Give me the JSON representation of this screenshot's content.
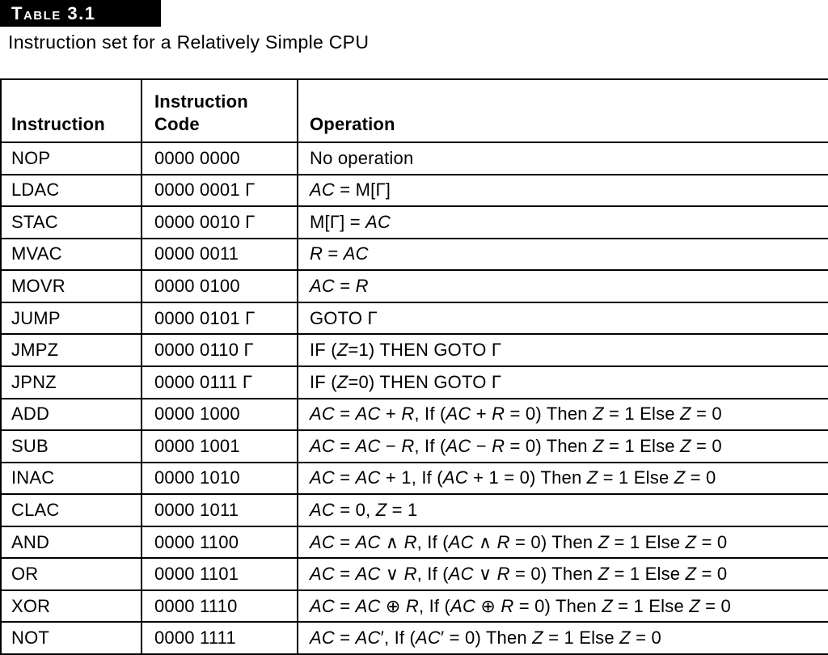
{
  "header": {
    "table_label": "Table 3.1",
    "caption": "Instruction set for a Relatively Simple CPU"
  },
  "colors": {
    "label_background": "#000000",
    "label_text": "#ffffff",
    "border": "#000000",
    "body_text": "#000000",
    "page_background": "#ffffff"
  },
  "table": {
    "columns": [
      "Instruction",
      "Instruction Code",
      "Operation"
    ],
    "rows": [
      {
        "instruction": "NOP",
        "code": "0000 0000",
        "operation": "No operation"
      },
      {
        "instruction": "LDAC",
        "code": "0000 0001 Γ",
        "operation": "*AC* = M[Γ]"
      },
      {
        "instruction": "STAC",
        "code": "0000 0010 Γ",
        "operation": "M[Γ] = *AC*"
      },
      {
        "instruction": "MVAC",
        "code": "0000 0011",
        "operation": "*R* = *AC*"
      },
      {
        "instruction": "MOVR",
        "code": "0000 0100",
        "operation": "*AC* = *R*"
      },
      {
        "instruction": "JUMP",
        "code": "0000 0101 Γ",
        "operation": "GOTO Γ"
      },
      {
        "instruction": "JMPZ",
        "code": "0000 0110 Γ",
        "operation": "IF (*Z*=1) THEN GOTO Γ"
      },
      {
        "instruction": "JPNZ",
        "code": "0000 0111 Γ",
        "operation": "IF (*Z*=0) THEN GOTO Γ"
      },
      {
        "instruction": "ADD",
        "code": "0000 1000",
        "operation": "*AC* = *AC* + *R*, If (*AC* + *R* = 0) Then *Z* = 1 Else *Z* = 0"
      },
      {
        "instruction": "SUB",
        "code": "0000 1001",
        "operation": "*AC* = *AC* − *R*, If (*AC* − *R* = 0) Then *Z* = 1 Else *Z* = 0"
      },
      {
        "instruction": "INAC",
        "code": "0000 1010",
        "operation": "*AC* = *AC* + 1, If (*AC* + 1 = 0) Then *Z* = 1 Else *Z* = 0"
      },
      {
        "instruction": "CLAC",
        "code": "0000 1011",
        "operation": "*AC* = 0, *Z* = 1"
      },
      {
        "instruction": "AND",
        "code": "0000 1100",
        "operation": "*AC* = *AC* ∧ *R*, If (*AC* ∧ *R* = 0) Then *Z* = 1 Else *Z* = 0"
      },
      {
        "instruction": "OR",
        "code": "0000 1101",
        "operation": "*AC* = *AC* ∨ *R*, If (*AC* ∨ *R* = 0) Then *Z* = 1 Else *Z* = 0"
      },
      {
        "instruction": "XOR",
        "code": "0000 1110",
        "operation": "*AC* = *AC* ⊕ *R*, If (*AC* ⊕ *R* = 0) Then *Z* = 1 Else *Z* = 0"
      },
      {
        "instruction": "NOT",
        "code": "0000 1111",
        "operation": "*AC* = *AC*′, If (*AC*′ = 0) Then *Z* = 1 Else *Z* = 0"
      }
    ]
  }
}
